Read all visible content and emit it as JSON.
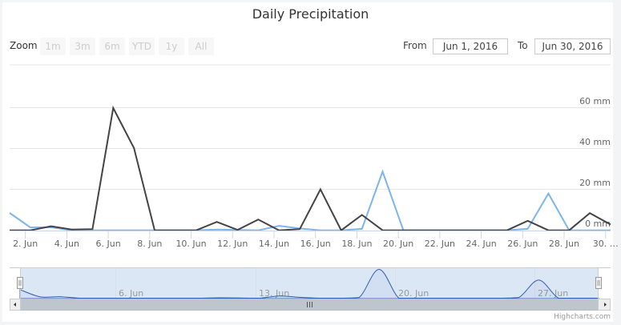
{
  "title": "Daily Precipitation",
  "range_selector": {
    "zoom_label": "Zoom",
    "buttons": [
      {
        "label": "1m"
      },
      {
        "label": "3m"
      },
      {
        "label": "6m"
      },
      {
        "label": "YTD"
      },
      {
        "label": "1y"
      },
      {
        "label": "All"
      }
    ],
    "from_label": "From",
    "from_value": "Jun 1, 2016",
    "to_label": "To",
    "to_value": "Jun 30, 2016"
  },
  "y_axis": {
    "labels": [
      "0 mm",
      "20 mm",
      "40 mm",
      "60 mm"
    ]
  },
  "navigator": {
    "labels": [
      "6. Jun",
      "13. Jun",
      "20. Jun",
      "27. Jun"
    ]
  },
  "credits": "Highcharts.com",
  "colors": {
    "series_blue": "#7cb5ec",
    "series_dark": "#434348",
    "grid": "#e6e6e6",
    "axis": "#ccd6eb",
    "navigator_mask": "#dce7f6",
    "navigator_series": "#335cad",
    "scrollbar": "#bfc5cc"
  },
  "chart_data": {
    "type": "line",
    "title": "Daily Precipitation",
    "xlabel": "",
    "ylabel": "",
    "ylim": [
      0,
      80
    ],
    "grid": true,
    "legend": "none",
    "y_ticks": [
      0,
      20,
      40,
      60,
      80
    ],
    "y_tick_labels": [
      "0 mm",
      "20 mm",
      "40 mm",
      "60 mm"
    ],
    "x_tick_labels": [
      "2. Jun",
      "4. Jun",
      "6. Jun",
      "8. Jun",
      "10. Jun",
      "12. Jun",
      "14. Jun",
      "16. Jun",
      "18. Jun",
      "20. Jun",
      "22. Jun",
      "24. Jun",
      "26. Jun",
      "28. Jun",
      "30. …"
    ],
    "x": [
      "Jun 1",
      "Jun 2",
      "Jun 3",
      "Jun 4",
      "Jun 5",
      "Jun 6",
      "Jun 7",
      "Jun 8",
      "Jun 9",
      "Jun 10",
      "Jun 11",
      "Jun 12",
      "Jun 13",
      "Jun 14",
      "Jun 15",
      "Jun 16",
      "Jun 17",
      "Jun 18",
      "Jun 19",
      "Jun 20",
      "Jun 21",
      "Jun 22",
      "Jun 23",
      "Jun 24",
      "Jun 25",
      "Jun 26",
      "Jun 27",
      "Jun 28",
      "Jun 29",
      "Jun 30"
    ],
    "series": [
      {
        "name": "",
        "color": "#7cb5ec",
        "values": [
          8.5,
          1.4,
          1.5,
          0,
          0,
          0,
          0,
          0,
          0,
          0,
          0.4,
          0.2,
          0,
          2.2,
          0.9,
          0,
          0,
          0.7,
          28.7,
          0,
          0,
          0,
          0,
          0,
          0,
          0.7,
          18.0,
          0,
          0,
          0
        ]
      },
      {
        "name": "",
        "color": "#434348",
        "values": [
          0,
          0,
          2.0,
          0.4,
          0.6,
          59.8,
          40.2,
          0,
          0,
          0,
          4.1,
          0.2,
          5.3,
          0,
          0.6,
          20.0,
          0,
          7.5,
          0,
          0,
          0,
          0,
          0,
          0,
          0,
          4.6,
          0,
          0,
          8.4,
          2.8
        ]
      }
    ],
    "navigator_series_index": 0,
    "range": {
      "from": "Jun 1, 2016",
      "to": "Jun 30, 2016"
    }
  }
}
